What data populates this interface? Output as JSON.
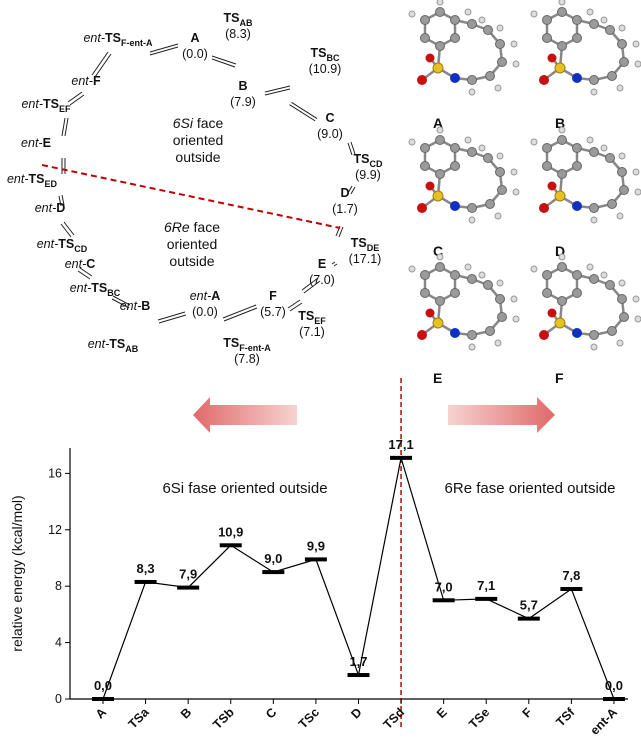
{
  "diagram": {
    "nodes": [
      {
        "prefix": "ent-",
        "main": "TS",
        "sub": "F-ent-A"
      },
      {
        "main": "A",
        "energy": "(0.0)"
      },
      {
        "main": "TS",
        "sub": "AB",
        "energy": "(8.3)"
      },
      {
        "main": "B",
        "energy": "(7.9)"
      },
      {
        "main": "TS",
        "sub": "BC",
        "energy": "(10.9)"
      },
      {
        "main": "C",
        "energy": "(9.0)"
      },
      {
        "main": "TS",
        "sub": "CD",
        "energy": "(9.9)"
      },
      {
        "main": "D",
        "energy": "(1.7)"
      },
      {
        "main": "TS",
        "sub": "DE",
        "energy": "(17.1)"
      },
      {
        "main": "E",
        "energy": "(7.0)"
      },
      {
        "main": "TS",
        "sub": "EF",
        "energy": "(7.1)"
      },
      {
        "main": "F",
        "energy": "(5.7)"
      },
      {
        "main": "TS",
        "sub": "F-ent-A",
        "energy": "(7.8)"
      },
      {
        "prefix": "ent-",
        "main": "A",
        "energy": "(0.0)"
      },
      {
        "prefix": "ent-",
        "main": "TS",
        "sub": "AB"
      },
      {
        "prefix": "ent-",
        "main": "B"
      },
      {
        "prefix": "ent-",
        "main": "TS",
        "sub": "BC"
      },
      {
        "prefix": "ent-",
        "main": "C"
      },
      {
        "prefix": "ent-",
        "main": "TS",
        "sub": "CD"
      },
      {
        "prefix": "ent-",
        "main": "D"
      },
      {
        "prefix": "ent-",
        "main": "TS",
        "sub": "ED"
      },
      {
        "prefix": "ent-",
        "main": "E"
      },
      {
        "prefix": "ent-",
        "main": "TS",
        "sub": "EF"
      },
      {
        "prefix": "ent-",
        "main": "F"
      }
    ],
    "regions": [
      {
        "em": "6Si",
        "first": " face",
        "second": "oriented",
        "third": "outside"
      },
      {
        "em": "6Re",
        "first": " face",
        "second": "oriented",
        "third": "outside"
      }
    ]
  },
  "structures": [
    "A",
    "B",
    "C",
    "D",
    "E",
    "F"
  ],
  "chart_data": {
    "type": "line",
    "y_label": "relative energy (kcal/mol)",
    "annotations": [
      "6Si fase oriented outside",
      "6Re fase oriented outside"
    ],
    "categories": [
      "A",
      "TSa",
      "B",
      "TSb",
      "C",
      "TSc",
      "D",
      "TSd",
      "E",
      "TSe",
      "F",
      "TSf",
      "ent-A"
    ],
    "values": [
      0,
      8.3,
      7.9,
      10.9,
      9.0,
      9.9,
      1.7,
      17.1,
      7.0,
      7.1,
      5.7,
      7.8,
      0.0
    ],
    "value_labels": [
      "0,0",
      "8,3",
      "7,9",
      "10,9",
      "9,0",
      "9,9",
      "1,7",
      "17,1",
      "7,0",
      "7,1",
      "5,7",
      "7,8",
      "0,0"
    ],
    "color": "#000000",
    "ylim": [
      0,
      17.8
    ],
    "yticks": [
      0,
      4,
      8,
      12,
      16
    ]
  }
}
